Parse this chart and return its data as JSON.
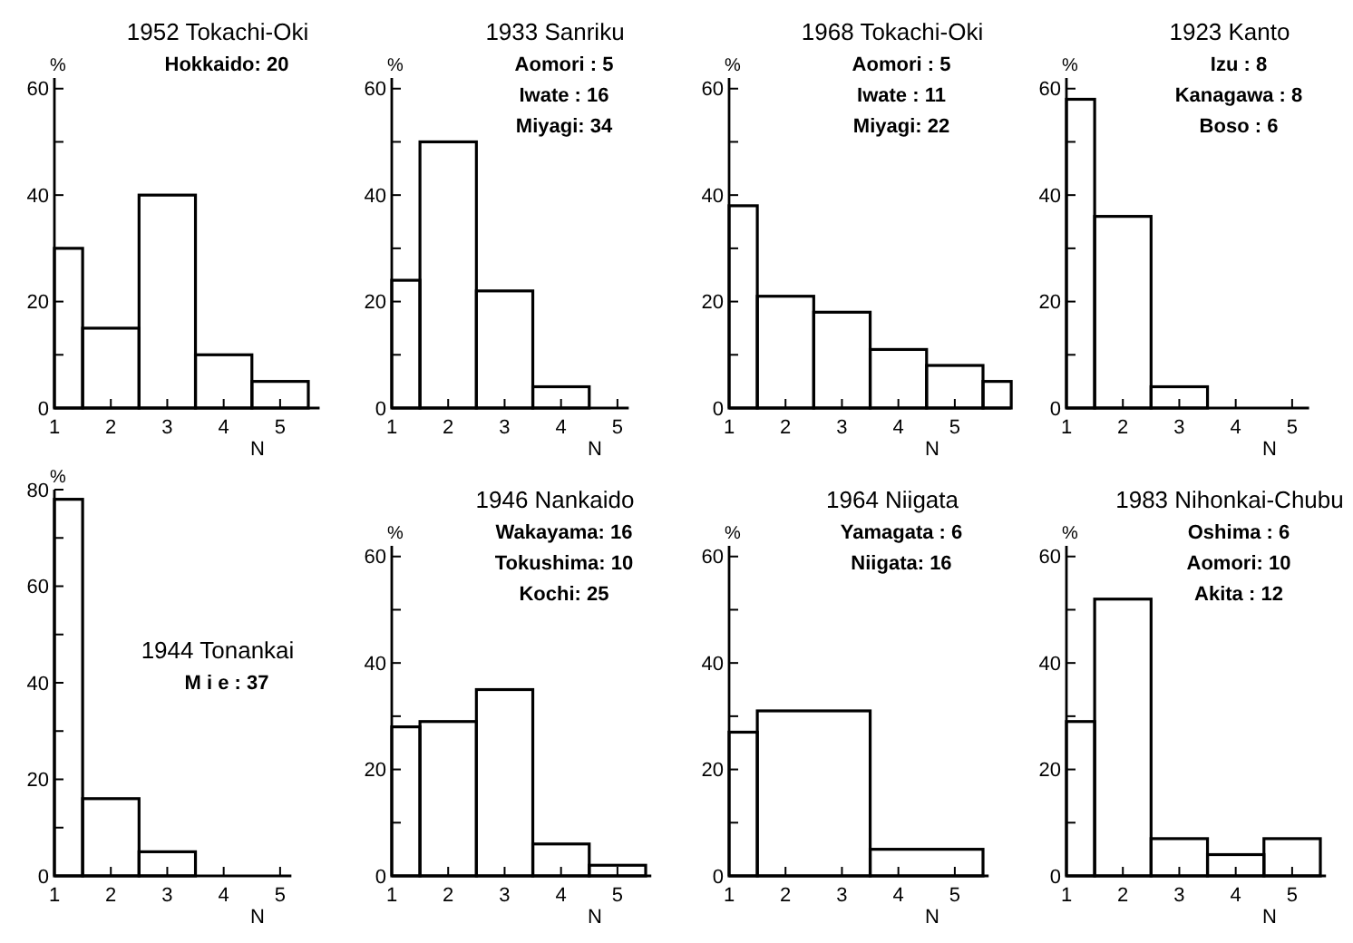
{
  "chart_data": [
    {
      "type": "histogram",
      "title": "1952 Tokachi-Oki",
      "annotations": [
        "Hokkaido: 20"
      ],
      "xlabel": "N",
      "ylabel": "%",
      "bins": [
        1,
        1.5,
        2.5,
        3.5,
        4.5,
        5.5
      ],
      "values": [
        30,
        15,
        40,
        10,
        5
      ],
      "color": "#000000",
      "xlim": [
        1,
        5.7
      ],
      "xticks": [
        1,
        2,
        3,
        4,
        5
      ],
      "ylim": [
        0,
        62
      ],
      "yticks": [
        0,
        {
          "value": 10,
          "label": null
        },
        20,
        {
          "value": 30,
          "label": null
        },
        40,
        {
          "value": 50,
          "label": null
        },
        60
      ]
    },
    {
      "type": "histogram",
      "title": "1933 Sanriku",
      "annotations": [
        "Aomori : 5",
        "Iwate : 16",
        "Miyagi: 34"
      ],
      "xlabel": "N",
      "ylabel": "%",
      "bins": [
        1,
        1.5,
        2.5,
        3.5,
        4.5
      ],
      "values": [
        24,
        50,
        22,
        4
      ],
      "color": "#000000",
      "xlim": [
        1,
        5.2
      ],
      "xticks": [
        1,
        2,
        3,
        4,
        5
      ],
      "ylim": [
        0,
        62
      ],
      "yticks": [
        0,
        {
          "value": 10,
          "label": null
        },
        20,
        {
          "value": 30,
          "label": null
        },
        40,
        {
          "value": 50,
          "label": null
        },
        60
      ]
    },
    {
      "type": "histogram",
      "title": "1968 Tokachi-Oki",
      "annotations": [
        "Aomori : 5",
        "Iwate : 11",
        "Miyagi: 22"
      ],
      "xlabel": "N",
      "ylabel": "%",
      "bins": [
        1,
        1.5,
        2.5,
        3.5,
        4.5,
        5.5,
        6
      ],
      "values": [
        38,
        21,
        18,
        11,
        8,
        5
      ],
      "color": "#000000",
      "xlim": [
        1,
        6
      ],
      "xticks": [
        1,
        2,
        3,
        4,
        5
      ],
      "ylim": [
        0,
        62
      ],
      "yticks": [
        0,
        {
          "value": 10,
          "label": null
        },
        20,
        {
          "value": 30,
          "label": null
        },
        40,
        {
          "value": 50,
          "label": null
        },
        60
      ]
    },
    {
      "type": "histogram",
      "title": "1923 Kanto",
      "annotations": [
        "Izu : 8",
        "Kanagawa : 8",
        "Boso : 6"
      ],
      "xlabel": "N",
      "ylabel": "%",
      "bins": [
        1,
        1.5,
        2.5,
        3.5
      ],
      "values": [
        58,
        36,
        4
      ],
      "color": "#000000",
      "xlim": [
        1,
        5.3
      ],
      "xticks": [
        1,
        2,
        3,
        4,
        5
      ],
      "ylim": [
        0,
        62
      ],
      "yticks": [
        0,
        {
          "value": 10,
          "label": null
        },
        20,
        {
          "value": 30,
          "label": null
        },
        40,
        {
          "value": 50,
          "label": null
        },
        60
      ]
    },
    {
      "type": "histogram",
      "title": "1944 Tonankai",
      "annotations": [
        "M i e : 37"
      ],
      "xlabel": "N",
      "ylabel": "%",
      "bins": [
        1,
        1.5,
        2.5,
        3.5
      ],
      "values": [
        78,
        16,
        5
      ],
      "color": "#000000",
      "xlim": [
        1,
        5.2
      ],
      "xticks": [
        1,
        2,
        3,
        4,
        5
      ],
      "ylim": [
        0,
        80
      ],
      "yticks": [
        0,
        {
          "value": 10,
          "label": null
        },
        20,
        {
          "value": 30,
          "label": null
        },
        40,
        {
          "value": 50,
          "label": null
        },
        60,
        {
          "value": 70,
          "label": null
        },
        80
      ]
    },
    {
      "type": "histogram",
      "title": "1946 Nankaido",
      "annotations": [
        "Wakayama: 16",
        "Tokushima: 10",
        "Kochi: 25"
      ],
      "xlabel": "N",
      "ylabel": "%",
      "bins": [
        1,
        1.5,
        2.5,
        3.5,
        4.5,
        5.5
      ],
      "values": [
        28,
        29,
        35,
        6,
        2
      ],
      "color": "#000000",
      "xlim": [
        1,
        5.6
      ],
      "xticks": [
        1,
        2,
        3,
        4,
        5
      ],
      "ylim": [
        0,
        62
      ],
      "yticks": [
        0,
        {
          "value": 10,
          "label": null
        },
        20,
        {
          "value": 30,
          "label": null
        },
        40,
        {
          "value": 50,
          "label": null
        },
        60
      ]
    },
    {
      "type": "histogram",
      "title": "1964 Niigata",
      "annotations": [
        "Yamagata : 6",
        "Niigata: 16"
      ],
      "xlabel": "N",
      "ylabel": "%",
      "bins": [
        1,
        1.5,
        3.5,
        5.5
      ],
      "values": [
        27,
        31,
        5
      ],
      "color": "#000000",
      "xlim": [
        1,
        5.6
      ],
      "xticks": [
        1,
        2,
        3,
        4,
        5
      ],
      "ylim": [
        0,
        62
      ],
      "yticks": [
        0,
        {
          "value": 10,
          "label": null
        },
        20,
        {
          "value": 30,
          "label": null
        },
        40,
        {
          "value": 50,
          "label": null
        },
        60
      ]
    },
    {
      "type": "histogram",
      "title": "1983 Nihonkai-Chubu",
      "annotations": [
        "Oshima : 6",
        "Aomori: 10",
        "Akita : 12"
      ],
      "xlabel": "N",
      "ylabel": "%",
      "bins": [
        1,
        1.5,
        2.5,
        3.5,
        4.5,
        5.5
      ],
      "values": [
        29,
        52,
        7,
        4,
        7
      ],
      "color": "#000000",
      "xlim": [
        1,
        5.6
      ],
      "xticks": [
        1,
        2,
        3,
        4,
        5
      ],
      "ylim": [
        0,
        62
      ],
      "yticks": [
        0,
        {
          "value": 10,
          "label": null
        },
        20,
        {
          "value": 30,
          "label": null
        },
        40,
        {
          "value": 50,
          "label": null
        },
        60
      ]
    }
  ]
}
